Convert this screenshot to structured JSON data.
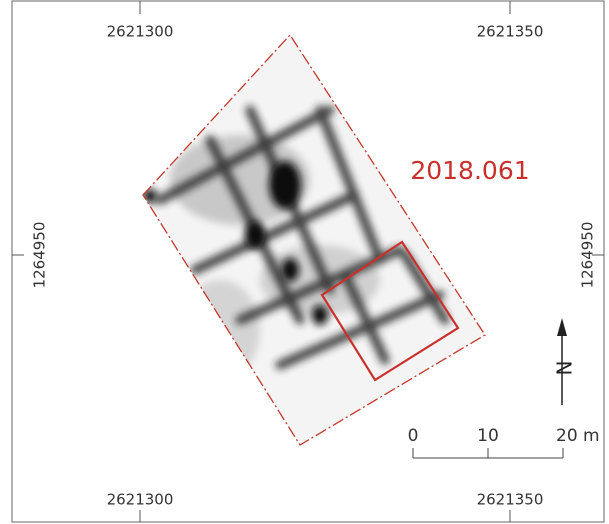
{
  "grid_labels": {
    "top": [
      "2621300",
      "2621350"
    ],
    "bottom": [
      "2621300",
      "2621350"
    ],
    "left": "1264950",
    "right": "1264950"
  },
  "site_label": "2018.061",
  "scale_bar": {
    "labels": [
      "0",
      "10",
      "20 m"
    ]
  },
  "north_label": "N"
}
